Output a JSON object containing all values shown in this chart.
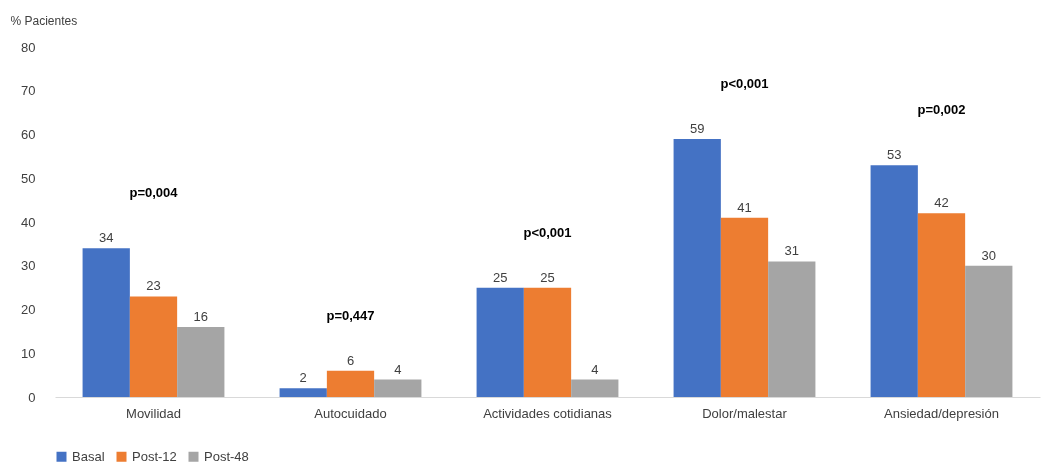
{
  "chart_data": {
    "type": "bar",
    "ylabel": "% Pacientes",
    "categories": [
      "Movilidad",
      "Autocuidado",
      "Actividades cotidianas",
      "Dolor/malestar",
      "Ansiedad/depresión"
    ],
    "series": [
      {
        "name": "Basal",
        "color": "#4472c4",
        "values": [
          34,
          2,
          25,
          59,
          53
        ]
      },
      {
        "name": "Post-12",
        "color": "#ed7d31",
        "values": [
          23,
          6,
          25,
          41,
          42
        ]
      },
      {
        "name": "Post-48",
        "color": "#a5a5a5",
        "values": [
          16,
          4,
          4,
          31,
          30
        ]
      }
    ],
    "ylim": [
      0,
      80
    ],
    "yticks": [
      0,
      10,
      20,
      30,
      40,
      50,
      60,
      70,
      80
    ],
    "data_labels": true,
    "grid": false,
    "legend": "bottom",
    "annotations": [
      "p=0,004",
      "p=0,447",
      "p<0,001",
      "p<0,001",
      "p=0,002"
    ]
  }
}
